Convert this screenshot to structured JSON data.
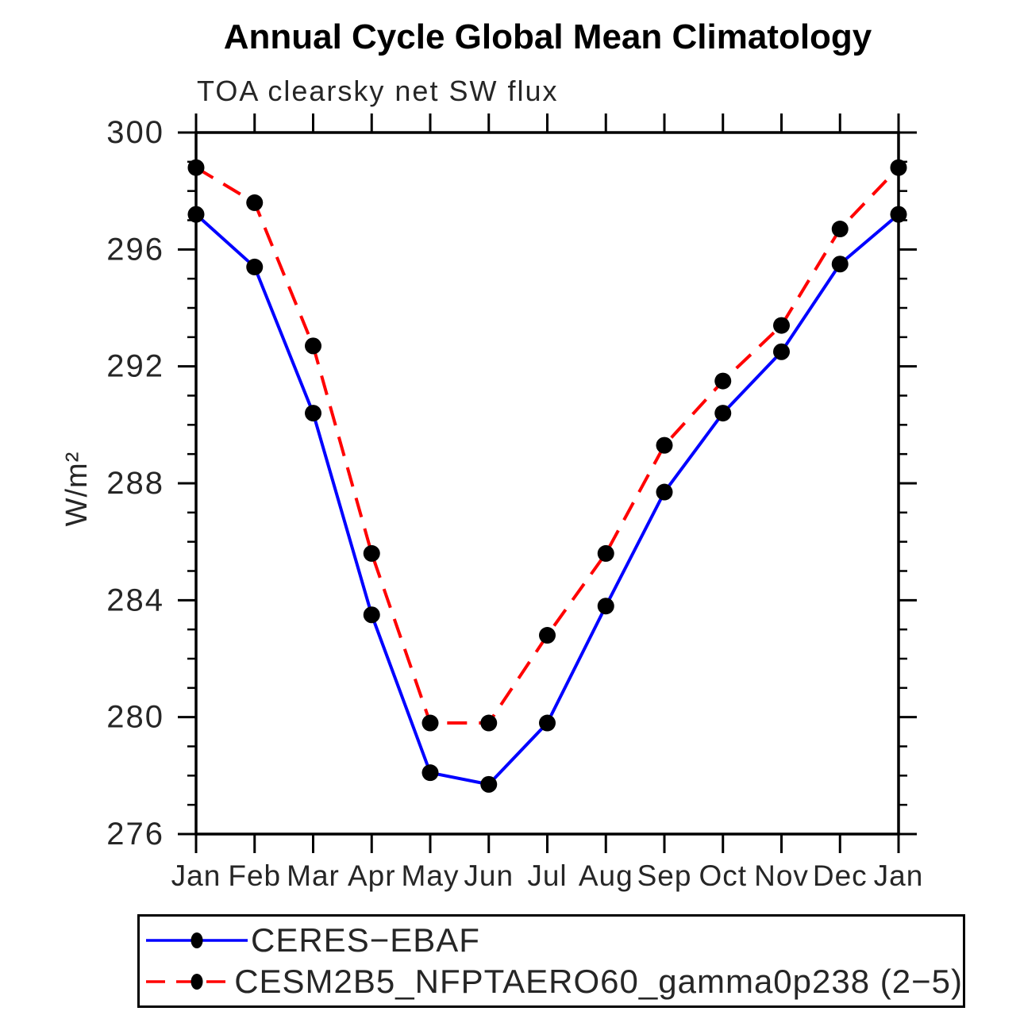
{
  "chart_data": {
    "type": "line",
    "title": "Annual Cycle Global Mean Climatology",
    "subtitle": "TOA clearsky net SW flux",
    "ylabel": "W/m²",
    "categories": [
      "Jan",
      "Feb",
      "Mar",
      "Apr",
      "May",
      "Jun",
      "Jul",
      "Aug",
      "Sep",
      "Oct",
      "Nov",
      "Dec",
      "Jan"
    ],
    "ylim": [
      276,
      300
    ],
    "yticks_major": [
      276,
      280,
      284,
      288,
      292,
      296,
      300
    ],
    "ytick_minor_step": 1,
    "grid": false,
    "legend_position": "bottom-left-box",
    "series": [
      {
        "name": "CERES−EBAF",
        "line_style": "solid",
        "color": "#0000ff",
        "marker": "filled-circle",
        "marker_color": "#000000",
        "values": [
          297.2,
          295.4,
          290.4,
          283.5,
          278.1,
          277.7,
          279.8,
          283.8,
          287.7,
          290.4,
          292.5,
          295.5,
          297.2
        ]
      },
      {
        "name": "CESM2B5_NFPTAERO60_gamma0p238 (2−5)",
        "line_style": "dashed",
        "color": "#ff0000",
        "marker": "filled-circle",
        "marker_color": "#000000",
        "values": [
          298.8,
          297.6,
          292.7,
          285.6,
          279.8,
          279.8,
          282.8,
          285.6,
          289.3,
          291.5,
          293.4,
          296.7,
          298.8
        ]
      }
    ]
  },
  "colors": {
    "axis": "#000000",
    "text": "#262626",
    "background": "#ffffff"
  }
}
